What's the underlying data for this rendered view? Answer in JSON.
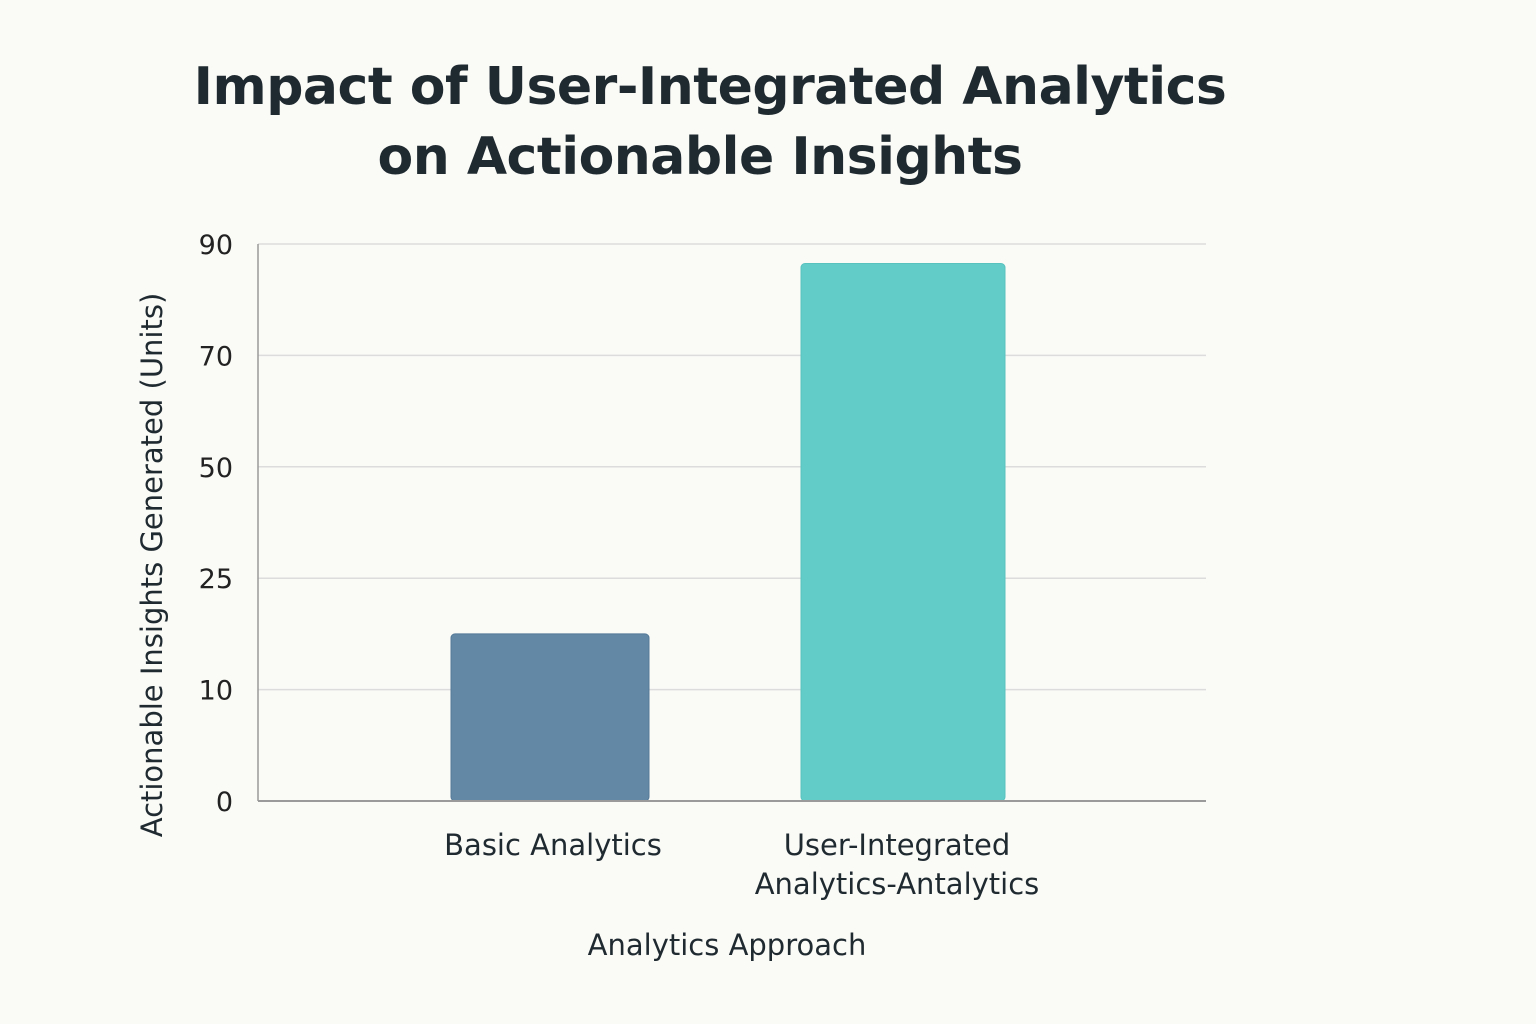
{
  "chart_data": {
    "type": "bar",
    "title": [
      "Impact of User-Integrated Analytics",
      "on Actionable Insights"
    ],
    "xlabel": "Analytics Approach",
    "ylabel": "Actionable Insights Generated (Units)",
    "categories": [
      [
        "Basic Analytics"
      ],
      [
        "User-Integrated",
        "Analytics-Antalytics"
      ]
    ],
    "values": [
      17.5,
      86.5
    ],
    "yticks": [
      0,
      10,
      25,
      50,
      70,
      90
    ],
    "grid": true,
    "legend": "none",
    "colors": [
      "#6288a6",
      "#62ccc8"
    ],
    "grid_color": "#dcdcdc",
    "axis_color": "#9a9a9a"
  }
}
